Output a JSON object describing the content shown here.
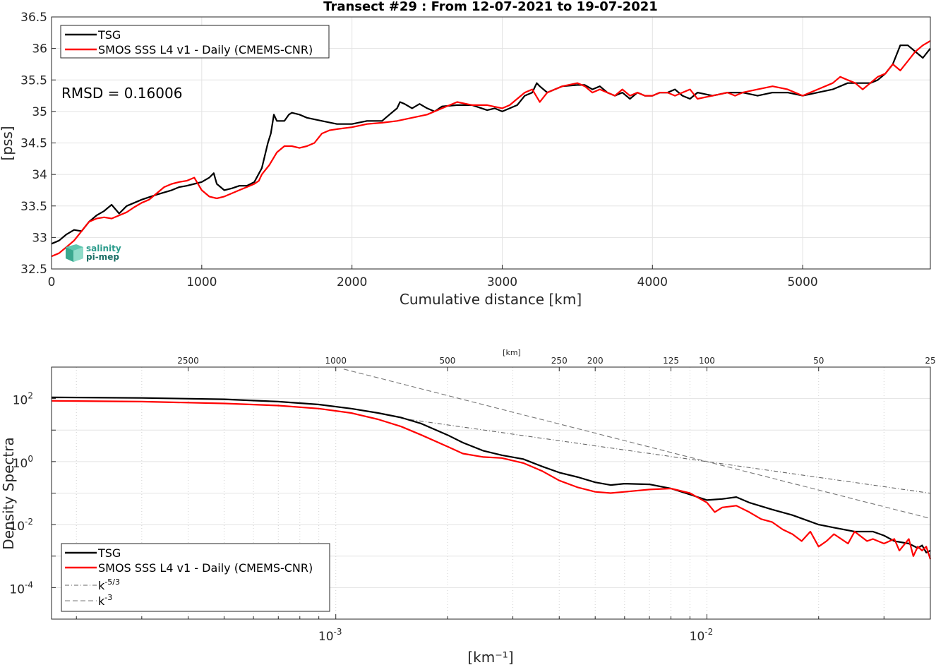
{
  "chart_data": [
    {
      "type": "line",
      "title": "Transect #29 : From 12-07-2021 to 19-07-2021",
      "xlabel": "Cumulative distance [km]",
      "ylabel": "[pss]",
      "xlim": [
        0,
        5850
      ],
      "ylim": [
        32.5,
        36.5
      ],
      "xticks": [
        "0",
        "1000",
        "2000",
        "3000",
        "4000",
        "5000"
      ],
      "yticks": [
        "32.5",
        "33",
        "33.5",
        "34",
        "34.5",
        "35",
        "35.5",
        "36",
        "36.5"
      ],
      "grid": true,
      "legend_position": "top-left",
      "annotation": "RMSD = 0.16006",
      "logo_text": [
        "salinity",
        "pi-mep"
      ],
      "series": [
        {
          "name": "TSG",
          "color": "#000000",
          "x": [
            0,
            50,
            100,
            150,
            200,
            250,
            300,
            350,
            400,
            450,
            500,
            550,
            600,
            700,
            800,
            850,
            900,
            950,
            1000,
            1050,
            1080,
            1100,
            1150,
            1200,
            1250,
            1300,
            1350,
            1400,
            1420,
            1440,
            1460,
            1480,
            1500,
            1550,
            1580,
            1600,
            1650,
            1700,
            1800,
            1900,
            2000,
            2100,
            2200,
            2250,
            2300,
            2320,
            2350,
            2400,
            2450,
            2500,
            2550,
            2600,
            2700,
            2800,
            2900,
            2950,
            3000,
            3050,
            3100,
            3150,
            3200,
            3230,
            3250,
            3300,
            3350,
            3400,
            3500,
            3550,
            3600,
            3650,
            3700,
            3750,
            3800,
            3850,
            3900,
            3950,
            4000,
            4050,
            4100,
            4150,
            4200,
            4250,
            4300,
            4400,
            4500,
            4600,
            4700,
            4800,
            4900,
            5000,
            5100,
            5200,
            5300,
            5400,
            5450,
            5500,
            5550,
            5600,
            5650,
            5700,
            5750,
            5800,
            5850
          ],
          "y": [
            32.9,
            32.95,
            33.05,
            33.12,
            33.1,
            33.25,
            33.35,
            33.42,
            33.52,
            33.38,
            33.5,
            33.55,
            33.6,
            33.68,
            33.75,
            33.8,
            33.82,
            33.85,
            33.88,
            33.95,
            34.02,
            33.85,
            33.75,
            33.78,
            33.82,
            33.82,
            33.88,
            34.1,
            34.3,
            34.5,
            34.65,
            34.95,
            34.85,
            34.85,
            34.95,
            34.98,
            34.95,
            34.9,
            34.85,
            34.8,
            34.8,
            34.85,
            34.85,
            34.95,
            35.05,
            35.15,
            35.12,
            35.05,
            35.12,
            35.05,
            35.0,
            35.08,
            35.1,
            35.1,
            35.02,
            35.05,
            35.0,
            35.05,
            35.1,
            35.25,
            35.3,
            35.45,
            35.4,
            35.3,
            35.35,
            35.4,
            35.42,
            35.42,
            35.35,
            35.4,
            35.3,
            35.25,
            35.3,
            35.2,
            35.3,
            35.25,
            35.25,
            35.3,
            35.3,
            35.35,
            35.25,
            35.2,
            35.3,
            35.25,
            35.3,
            35.3,
            35.25,
            35.3,
            35.3,
            35.25,
            35.3,
            35.35,
            35.45,
            35.45,
            35.45,
            35.5,
            35.6,
            35.75,
            36.05,
            36.05,
            35.95,
            35.85,
            36.0
          ]
        },
        {
          "name": "SMOS SSS L4 v1 - Daily (CMEMS-CNR)",
          "color": "#ff0000",
          "x": [
            0,
            50,
            100,
            150,
            200,
            250,
            300,
            350,
            400,
            450,
            500,
            550,
            600,
            650,
            700,
            750,
            800,
            850,
            900,
            950,
            1000,
            1050,
            1100,
            1150,
            1200,
            1250,
            1300,
            1350,
            1380,
            1400,
            1450,
            1500,
            1550,
            1600,
            1650,
            1700,
            1750,
            1800,
            1850,
            1900,
            2000,
            2100,
            2200,
            2300,
            2400,
            2500,
            2600,
            2700,
            2800,
            2900,
            3000,
            3050,
            3100,
            3150,
            3200,
            3250,
            3300,
            3350,
            3400,
            3500,
            3550,
            3600,
            3650,
            3700,
            3750,
            3800,
            3850,
            3900,
            3950,
            4000,
            4050,
            4100,
            4150,
            4200,
            4250,
            4300,
            4400,
            4500,
            4550,
            4600,
            4700,
            4800,
            4900,
            5000,
            5100,
            5200,
            5250,
            5300,
            5350,
            5400,
            5450,
            5500,
            5550,
            5600,
            5650,
            5700,
            5750,
            5800,
            5850
          ],
          "y": [
            32.7,
            32.75,
            32.85,
            32.95,
            33.1,
            33.25,
            33.3,
            33.32,
            33.3,
            33.35,
            33.4,
            33.48,
            33.55,
            33.6,
            33.7,
            33.8,
            33.85,
            33.88,
            33.9,
            33.95,
            33.75,
            33.65,
            33.62,
            33.65,
            33.7,
            33.75,
            33.8,
            33.85,
            33.9,
            34.0,
            34.15,
            34.35,
            34.45,
            34.45,
            34.42,
            34.45,
            34.5,
            34.65,
            34.7,
            34.72,
            34.75,
            34.8,
            34.82,
            34.85,
            34.9,
            34.95,
            35.05,
            35.15,
            35.1,
            35.1,
            35.05,
            35.1,
            35.2,
            35.3,
            35.35,
            35.15,
            35.3,
            35.35,
            35.4,
            35.45,
            35.4,
            35.3,
            35.35,
            35.3,
            35.25,
            35.35,
            35.25,
            35.3,
            35.25,
            35.25,
            35.3,
            35.3,
            35.25,
            35.3,
            35.35,
            35.2,
            35.25,
            35.3,
            35.25,
            35.3,
            35.35,
            35.4,
            35.35,
            35.25,
            35.35,
            35.45,
            35.55,
            35.5,
            35.45,
            35.35,
            35.45,
            35.55,
            35.6,
            35.75,
            35.65,
            35.8,
            35.95,
            36.05,
            36.12
          ]
        }
      ]
    },
    {
      "type": "line",
      "title": "",
      "xlabel": "[km⁻¹]",
      "ylabel": "Density Spectra",
      "top_axis_label": "[km]",
      "log_x": true,
      "log_y": true,
      "xlim": [
        0.0001714,
        0.04
      ],
      "ylim": [
        1e-05,
        1000
      ],
      "top_ticks": [
        {
          "km": 2500,
          "label": "2500"
        },
        {
          "km": 1000,
          "label": "1000"
        },
        {
          "km": 500,
          "label": "500"
        },
        {
          "km": 250,
          "label": "250"
        },
        {
          "km": 200,
          "label": "200"
        },
        {
          "km": 125,
          "label": "125"
        },
        {
          "km": 100,
          "label": "100"
        },
        {
          "km": 50,
          "label": "50"
        },
        {
          "km": 25,
          "label": "25"
        }
      ],
      "x_tick_labels": [
        {
          "value": 0.001,
          "label": "10",
          "exp": "-3"
        },
        {
          "value": 0.01,
          "label": "10",
          "exp": "-2"
        }
      ],
      "y_tick_labels": [
        {
          "value": 100,
          "label": "10",
          "exp": "2"
        },
        {
          "value": 1,
          "label": "10",
          "exp": "0"
        },
        {
          "value": 0.01,
          "label": "10",
          "exp": "-2"
        },
        {
          "value": 0.0001,
          "label": "10",
          "exp": "-4"
        }
      ],
      "grid": true,
      "legend_position": "bottom-left",
      "series": [
        {
          "name": "TSG",
          "color": "#000000",
          "x": [
            0.000171,
            0.0003,
            0.0005,
            0.0007,
            0.0009,
            0.0011,
            0.0013,
            0.0015,
            0.0017,
            0.002,
            0.0022,
            0.0025,
            0.0028,
            0.0032,
            0.0036,
            0.004,
            0.0045,
            0.005,
            0.0055,
            0.006,
            0.007,
            0.008,
            0.009,
            0.01,
            0.011,
            0.012,
            0.013,
            0.015,
            0.017,
            0.02,
            0.022,
            0.025,
            0.028,
            0.03,
            0.032,
            0.035,
            0.037,
            0.038,
            0.039,
            0.04
          ],
          "y": [
            110,
            105,
            95,
            80,
            65,
            48,
            35,
            25,
            16,
            7,
            4,
            2.2,
            1.6,
            1.2,
            0.7,
            0.45,
            0.32,
            0.22,
            0.18,
            0.2,
            0.19,
            0.14,
            0.09,
            0.06,
            0.065,
            0.075,
            0.05,
            0.03,
            0.02,
            0.01,
            0.008,
            0.006,
            0.006,
            0.0045,
            0.003,
            0.0025,
            0.0018,
            0.0022,
            0.0013,
            0.0015
          ]
        },
        {
          "name": "SMOS SSS L4 v1 - Daily (CMEMS-CNR)",
          "color": "#ff0000",
          "x": [
            0.000171,
            0.0003,
            0.0005,
            0.0007,
            0.0009,
            0.0011,
            0.0013,
            0.0015,
            0.0017,
            0.002,
            0.0022,
            0.0025,
            0.0028,
            0.0032,
            0.0036,
            0.004,
            0.0045,
            0.005,
            0.0055,
            0.006,
            0.007,
            0.008,
            0.009,
            0.01,
            0.0105,
            0.011,
            0.012,
            0.013,
            0.014,
            0.015,
            0.016,
            0.017,
            0.018,
            0.019,
            0.02,
            0.021,
            0.022,
            0.024,
            0.025,
            0.027,
            0.028,
            0.03,
            0.032,
            0.033,
            0.035,
            0.036,
            0.037,
            0.038,
            0.039,
            0.04
          ],
          "y": [
            85,
            80,
            70,
            60,
            48,
            35,
            22,
            13,
            7,
            3,
            1.8,
            1.4,
            1.3,
            0.9,
            0.5,
            0.25,
            0.15,
            0.11,
            0.1,
            0.11,
            0.13,
            0.14,
            0.1,
            0.05,
            0.025,
            0.035,
            0.04,
            0.025,
            0.015,
            0.012,
            0.007,
            0.005,
            0.003,
            0.006,
            0.002,
            0.003,
            0.005,
            0.0025,
            0.006,
            0.003,
            0.0035,
            0.0025,
            0.0035,
            0.0015,
            0.0035,
            0.001,
            0.002,
            0.0015,
            0.002,
            0.0008
          ]
        },
        {
          "name": "k⁻⁵ᐟ³",
          "legend_label": "k",
          "legend_exp": "-5/3",
          "color": "#666666",
          "dash": "dash-dot",
          "slope": -1.6667,
          "anchor": [
            0.01,
            1
          ],
          "x_range": [
            0.0015,
            0.04
          ]
        },
        {
          "name": "k⁻³",
          "legend_label": "k",
          "legend_exp": "-3",
          "color": "#777777",
          "dash": "dashed",
          "slope": -3,
          "anchor": [
            0.01,
            1
          ],
          "x_range": [
            0.00105,
            0.04
          ]
        }
      ]
    }
  ]
}
